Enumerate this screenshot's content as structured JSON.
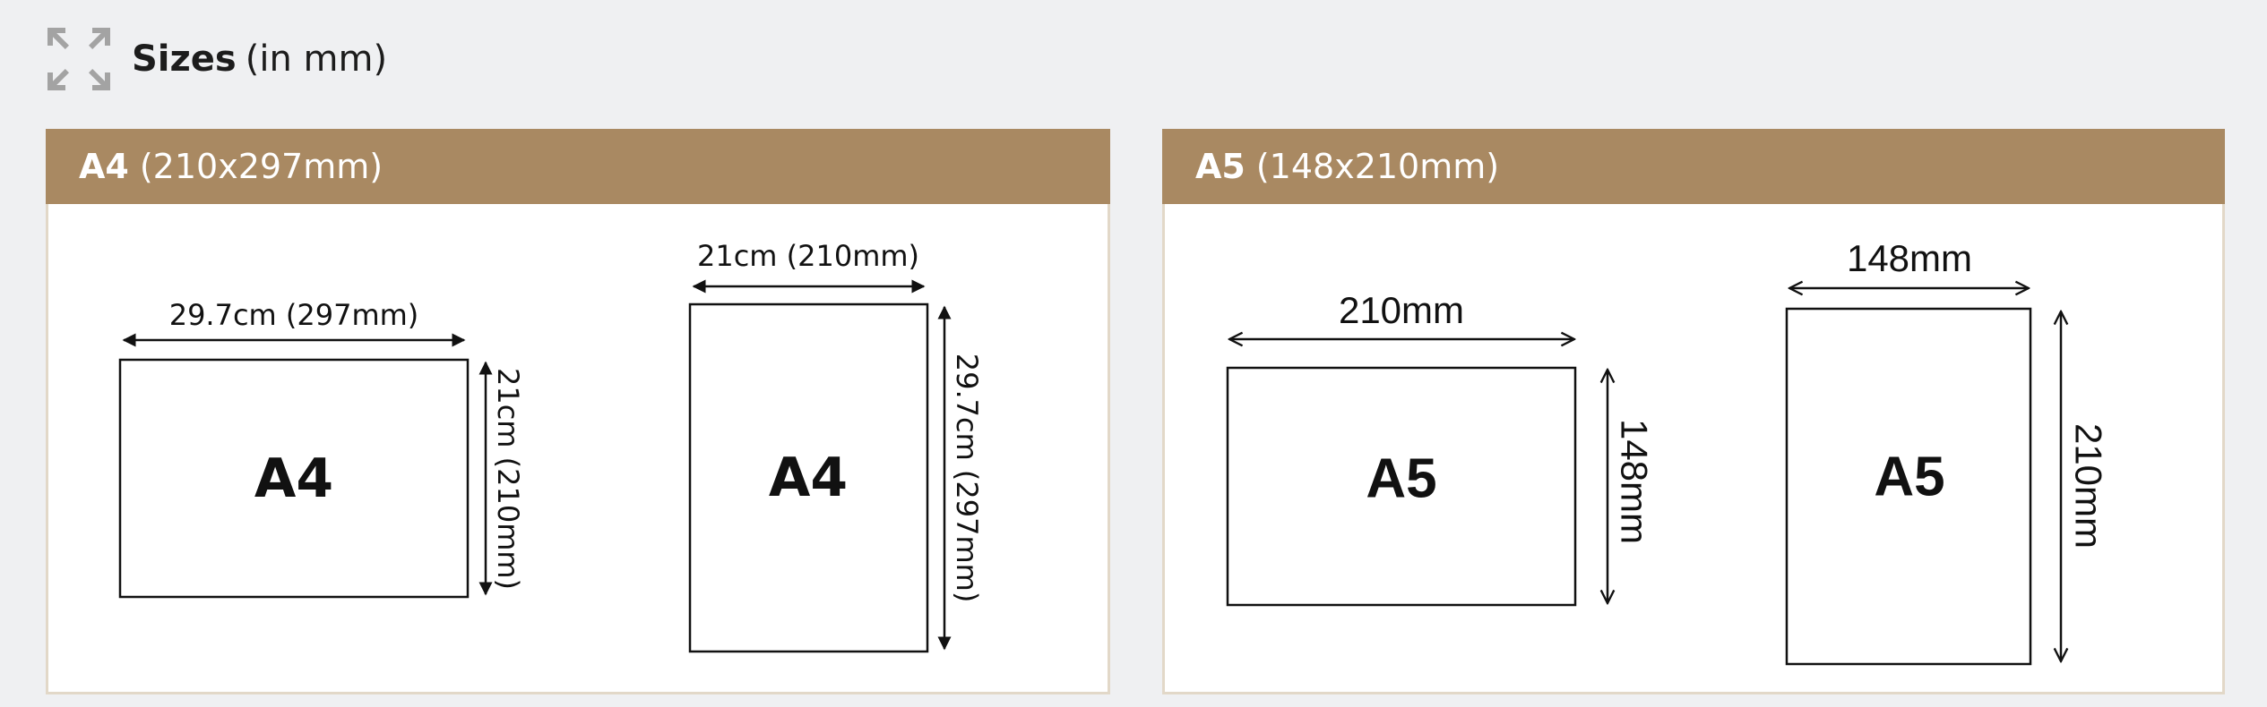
{
  "header": {
    "icon": "expand-arrows-icon",
    "title_bold": "Sizes",
    "title_normal": "(in mm)"
  },
  "panels": {
    "a4": {
      "title_bold": "A4",
      "title_normal": "(210x297mm)",
      "landscape": {
        "label": "A4",
        "width_label": "29.7cm (297mm)",
        "height_label": "21cm (210mm)"
      },
      "portrait": {
        "label": "A4",
        "width_label": "21cm (210mm)",
        "height_label": "29.7cm (297mm)"
      }
    },
    "a5": {
      "title_bold": "A5",
      "title_normal": "(148x210mm)",
      "landscape": {
        "label": "A5",
        "width_label": "210mm",
        "height_label": "148mm"
      },
      "portrait": {
        "label": "A5",
        "width_label": "148mm",
        "height_label": "210mm"
      }
    }
  },
  "colors": {
    "background": "#eff0f2",
    "panel_header": "#a98962",
    "panel_border": "#e2d8c8",
    "panel_header_text": "#ffffff",
    "icon": "#a3a3a3"
  }
}
